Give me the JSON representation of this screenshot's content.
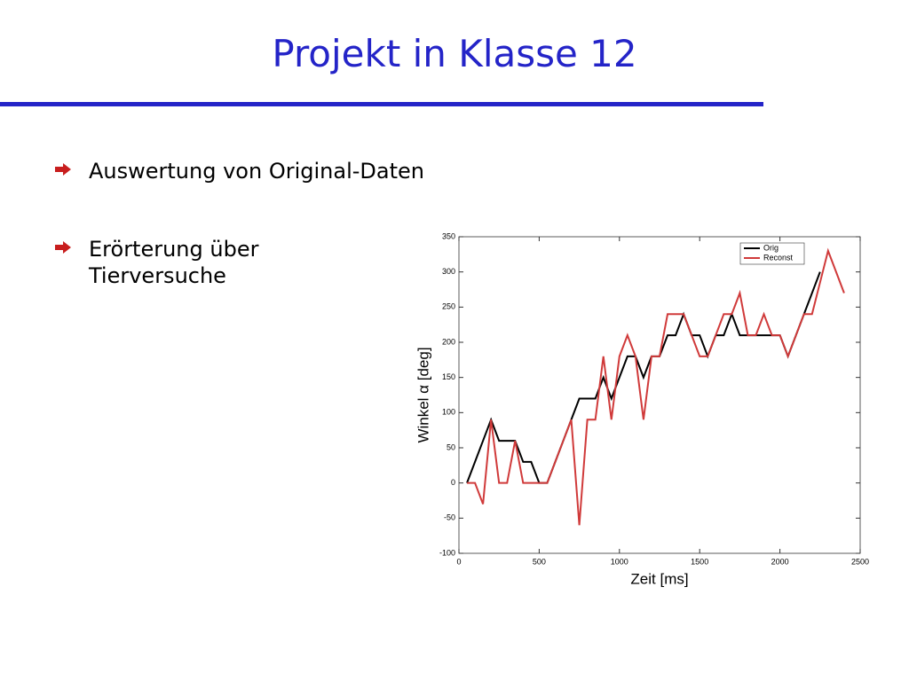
{
  "slide": {
    "title": "Projekt in Klasse 12",
    "bullets": [
      "Auswertung von Original-Daten",
      "Erörterung über Tierversuche"
    ]
  },
  "chart_data": {
    "type": "line",
    "xlabel": "Zeit [ms]",
    "ylabel": "Winkel α [deg]",
    "x": [
      50,
      100,
      150,
      200,
      250,
      300,
      350,
      400,
      450,
      500,
      550,
      600,
      650,
      700,
      750,
      800,
      850,
      900,
      950,
      1000,
      1050,
      1100,
      1150,
      1200,
      1250,
      1300,
      1350,
      1400,
      1450,
      1500,
      1550,
      1600,
      1650,
      1700,
      1750,
      1800,
      1850,
      1900,
      1950,
      2000,
      2050,
      2100,
      2150,
      2200,
      2250,
      2300,
      2350,
      2400
    ],
    "series": [
      {
        "name": "Orig",
        "color": "#000000",
        "values": [
          0,
          30,
          60,
          90,
          60,
          60,
          60,
          30,
          30,
          0,
          0,
          30,
          60,
          90,
          120,
          120,
          120,
          150,
          120,
          150,
          180,
          180,
          150,
          180,
          180,
          210,
          210,
          240,
          210,
          210,
          180,
          210,
          210,
          240,
          210,
          210,
          210,
          210,
          210,
          210,
          180,
          210,
          240,
          270,
          300,
          null,
          null,
          null
        ]
      },
      {
        "name": "Reconst",
        "color": "#d03a3a",
        "values": [
          0,
          0,
          -30,
          90,
          0,
          0,
          60,
          0,
          0,
          0,
          0,
          30,
          60,
          90,
          -60,
          90,
          90,
          180,
          90,
          180,
          210,
          180,
          90,
          180,
          180,
          240,
          240,
          240,
          210,
          180,
          180,
          210,
          240,
          240,
          270,
          210,
          210,
          240,
          210,
          210,
          180,
          210,
          240,
          240,
          285,
          330,
          300,
          270
        ]
      }
    ],
    "xlim": [
      0,
      2500
    ],
    "xticks": [
      0,
      500,
      1000,
      1500,
      2000,
      2500
    ],
    "ylim": [
      -100,
      350
    ],
    "yticks": [
      -100,
      -50,
      0,
      50,
      100,
      150,
      200,
      250,
      300,
      350
    ],
    "legend": "upper right"
  }
}
